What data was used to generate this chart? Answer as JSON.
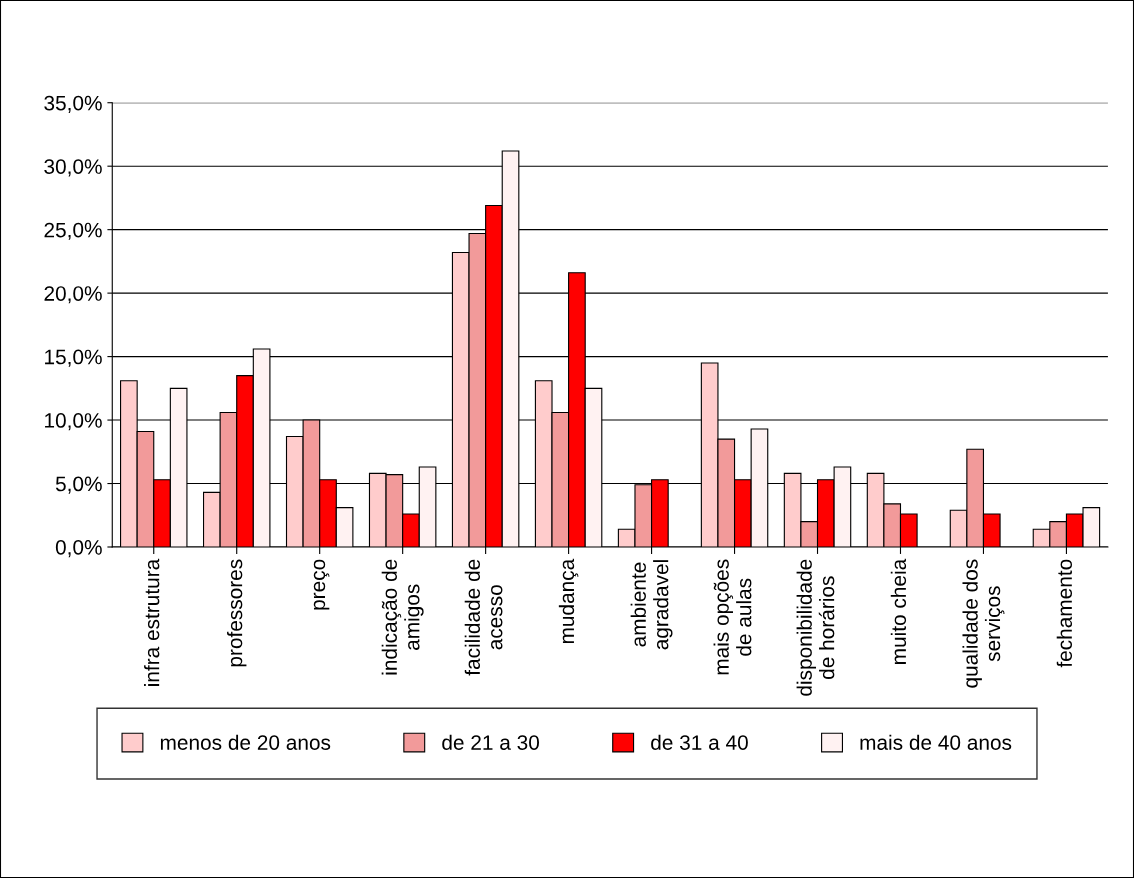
{
  "chart_data": {
    "type": "bar",
    "categories": [
      "infra estrutura",
      "professores",
      "preço",
      "indicação de\namigos",
      "facilidade de\nacesso",
      "mudança",
      "ambiente\nagradavel",
      "mais opções\nde aulas",
      "disponibilidade\nde horários",
      "muito cheia",
      "qualidade dos\nserviços",
      "fechamento"
    ],
    "series": [
      {
        "name": "menos de 20 anos",
        "color": "#ffcccc",
        "values": [
          13.1,
          4.3,
          8.7,
          5.8,
          23.2,
          13.1,
          1.4,
          14.5,
          5.8,
          5.8,
          2.9,
          1.4
        ]
      },
      {
        "name": "de 21 a 30",
        "color": "#f29a9a",
        "values": [
          9.1,
          10.6,
          10.0,
          5.7,
          24.7,
          10.6,
          4.9,
          8.5,
          2.0,
          3.4,
          7.7,
          2.0
        ]
      },
      {
        "name": "de 31 a 40",
        "color": "#ff0000",
        "values": [
          5.3,
          13.5,
          5.3,
          2.6,
          26.9,
          21.6,
          5.3,
          5.3,
          5.3,
          2.6,
          2.6,
          2.6
        ]
      },
      {
        "name": "mais de 40 anos",
        "color": "#fff2f2",
        "values": [
          12.5,
          15.6,
          3.1,
          6.3,
          31.2,
          12.5,
          null,
          9.3,
          6.3,
          null,
          null,
          3.1
        ]
      }
    ],
    "ylim": [
      0,
      35
    ],
    "yticks": [
      {
        "value": 0,
        "label": "0,0%"
      },
      {
        "value": 5,
        "label": "5,0%"
      },
      {
        "value": 10,
        "label": "10,0%"
      },
      {
        "value": 15,
        "label": "15,0%"
      },
      {
        "value": 20,
        "label": "20,0%"
      },
      {
        "value": 25,
        "label": "25,0%"
      },
      {
        "value": 30,
        "label": "30,0%"
      },
      {
        "value": 35,
        "label": "35,0%"
      }
    ],
    "grid": "y",
    "legend": "bottom"
  }
}
